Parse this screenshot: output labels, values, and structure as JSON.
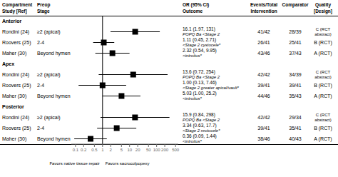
{
  "chart_data": {
    "type": "forest",
    "log": "x",
    "color": "#000000",
    "xlim": [
      0.07,
      631
    ],
    "xticks": [
      0.1,
      0.2,
      0.5,
      1,
      2,
      5,
      10,
      20,
      50,
      100,
      200,
      500
    ],
    "xlabel_left": "Favors native tissue repair",
    "xlabel_right": "Favors sacrocolpopexy",
    "column_headers": [
      [
        "Compartment",
        "Study [Ref]"
      ],
      [
        "Preop",
        "Stage"
      ],
      [
        "OR (95% CI)",
        "Outcome"
      ],
      [
        "Events/Total",
        "Intervention"
      ],
      [
        "Comparator"
      ],
      [
        "Quality",
        "[Design]"
      ]
    ],
    "sections": [
      {
        "label": "Anterior",
        "rows": [
          {
            "study": "Rondini (24)",
            "stage": "≥2 (apical)",
            "or": 16.1,
            "ci_low": 1.97,
            "ci_high": 131,
            "or_text": "16.1 (1.97, 131)",
            "outcome": "POPQ Ba <Stage 2",
            "intervention": "41/42",
            "comparator": "28/39",
            "quality": "C (RCT\nabstract)"
          },
          {
            "study": "Roovers (25)",
            "stage": "2-4",
            "or": 1.11,
            "ci_low": 0.45,
            "ci_high": 2.71,
            "or_text": "1.11 (0.45, 2.71)",
            "outcome": "<Stage 2 cystocele*",
            "intervention": "26/41",
            "comparator": "25/41",
            "quality": "B (RCT)"
          },
          {
            "study": "Maher (30)",
            "stage": "Beyond hymen",
            "or": 2.32,
            "ci_low": 0.54,
            "ci_high": 9.95,
            "or_text": "2.32 (0.54, 9.95)",
            "outcome": "<introitus*",
            "intervention": "43/46",
            "comparator": "37/43",
            "quality": "A (RCT)"
          }
        ]
      },
      {
        "label": "Apex",
        "rows": [
          {
            "study": "Rondini (24)",
            "stage": "≥2 (apical)",
            "or": 13.6,
            "ci_low": 0.72,
            "ci_high": 254,
            "or_text": "13.6 (0.72, 254)",
            "outcome": "POPQ Ba <Stage 2",
            "intervention": "42/42",
            "comparator": "34/39",
            "quality": "C (RCT\nabstract)"
          },
          {
            "study": "Roovers (25)",
            "stage": "2-4",
            "or": 1.0,
            "ci_low": 0.13,
            "ci_high": 7.46,
            "or_text": "1.00 (0.13, 7.46)",
            "outcome": "<Stage 2 greater apical/vault*",
            "intervention": "39/41",
            "comparator": "39/41",
            "quality": "B (RCT)"
          },
          {
            "study": "Maher (30)",
            "stage": "Beyond hymen",
            "or": 5.03,
            "ci_low": 1.0,
            "ci_high": 25.2,
            "or_text": "5.03 (1.00, 25.2)",
            "outcome": "<introitus*",
            "intervention": "44/46",
            "comparator": "35/43",
            "quality": "A (RCT)"
          }
        ]
      },
      {
        "label": "Posterior",
        "rows": [
          {
            "study": "Rondini (24)",
            "stage": "≥2 (apical)",
            "or": 15.9,
            "ci_low": 0.84,
            "ci_high": 298,
            "or_text": "15.9 (0.84, 298)",
            "outcome": "POPQ Ba <Stage 2",
            "intervention": "42/42",
            "comparator": "29/34",
            "quality": "C (RCT\nabstract)"
          },
          {
            "study": "Roovers (25)",
            "stage": "2-4",
            "or": 3.34,
            "ci_low": 0.63,
            "ci_high": 17.7,
            "or_text": "3.34 (0.63, 17.7)",
            "outcome": "<Stage 2 rectocele*",
            "intervention": "39/41",
            "comparator": "35/41",
            "quality": "B (RCT)"
          },
          {
            "study": "Maher (30)",
            "stage": "Beyond hymen",
            "or": 0.36,
            "ci_low": 0.09,
            "ci_high": 1.44,
            "or_text": "0.36 (0.09, 1.44)",
            "outcome": "<introitus*",
            "intervention": "38/46",
            "comparator": "40/43",
            "quality": "A (RCT)"
          }
        ]
      }
    ]
  }
}
